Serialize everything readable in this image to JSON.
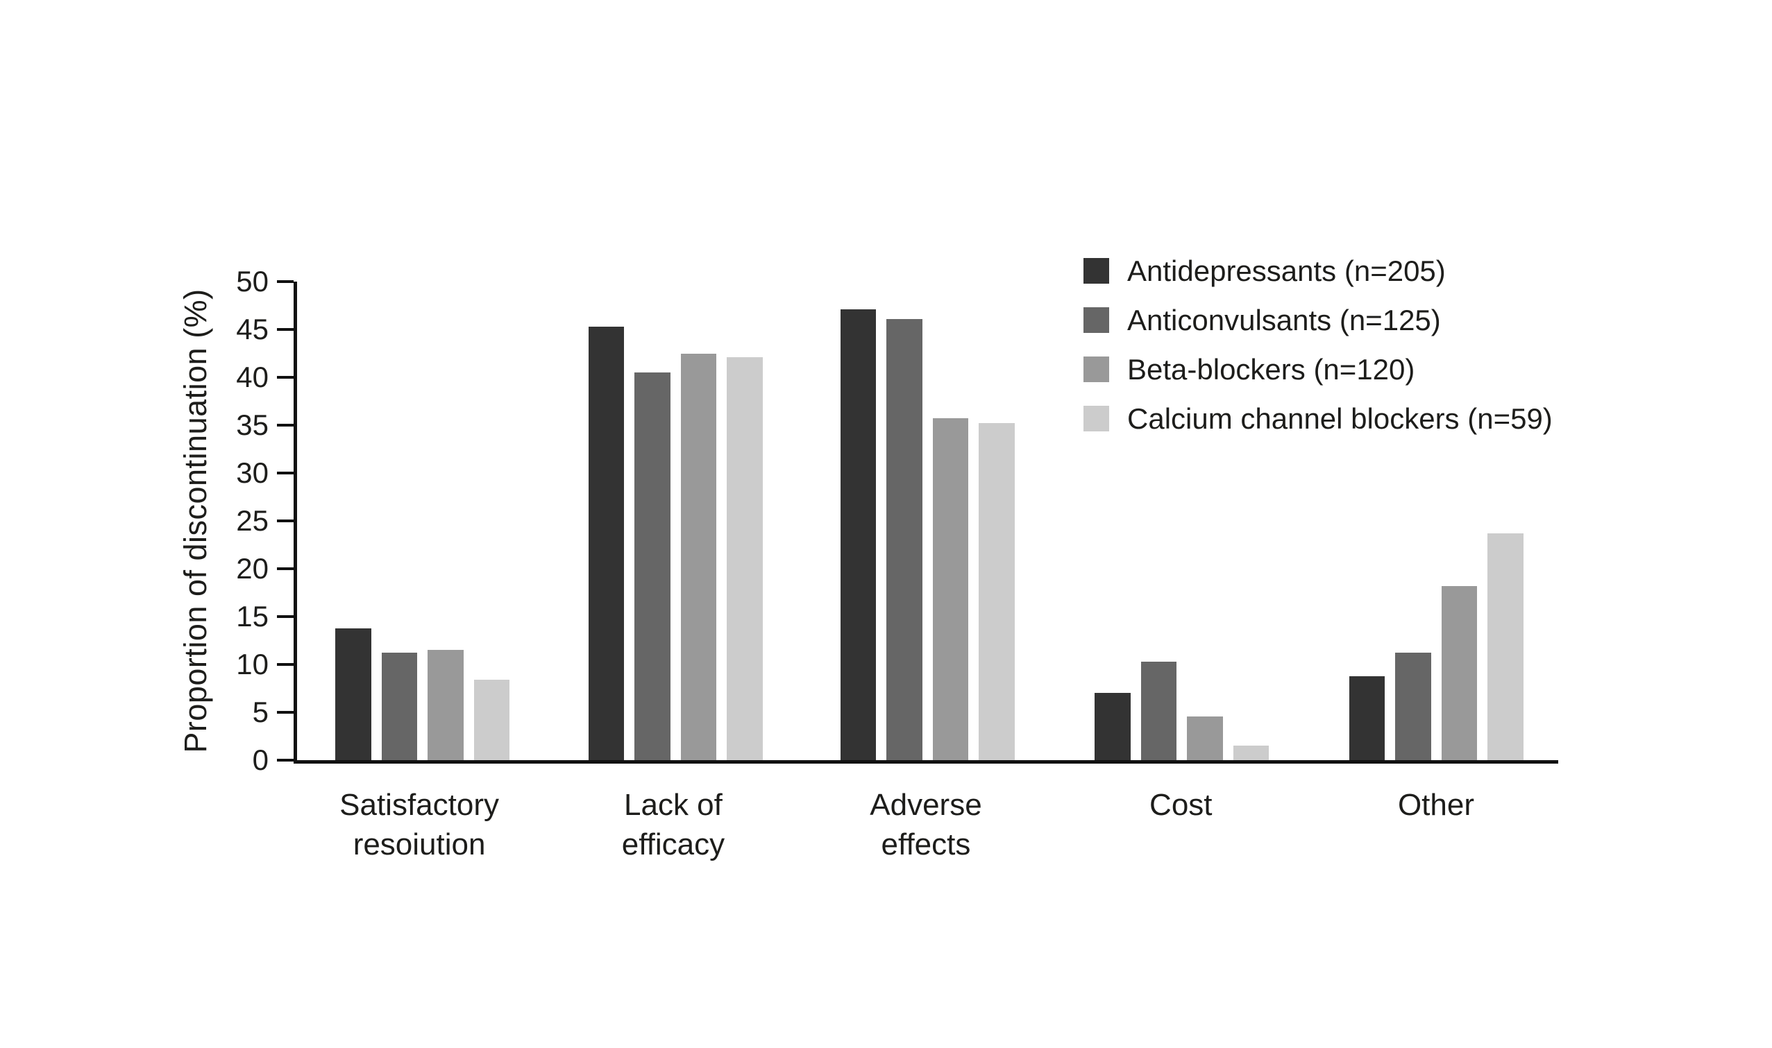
{
  "figure": {
    "background": "#ffffff",
    "axis_color": "#111111",
    "text_color": "#1d1d1b"
  },
  "chart_data": {
    "type": "bar",
    "title": "",
    "xlabel": "",
    "ylabel": "Proportion of discontinuation (%)",
    "ylim": [
      0,
      50
    ],
    "yticks": [
      0,
      5,
      10,
      15,
      20,
      25,
      30,
      35,
      40,
      45,
      50
    ],
    "grid": false,
    "legend_position": "upper right",
    "categories": [
      "Satisfactory\nresoiution",
      "Lack of\nefficacy",
      "Adverse\neffects",
      "Cost",
      "Other"
    ],
    "series": [
      {
        "name": "Antidepressants (n=205)",
        "color": "#333333",
        "values": [
          13.8,
          45.3,
          47.1,
          7.0,
          8.8
        ]
      },
      {
        "name": "Anticonvulsants (n=125)",
        "color": "#666666",
        "values": [
          11.2,
          40.5,
          46.1,
          10.3,
          11.2
        ]
      },
      {
        "name": "Beta-blockers (n=120)",
        "color": "#999999",
        "values": [
          11.5,
          42.5,
          35.7,
          4.6,
          18.2
        ]
      },
      {
        "name": "Calcium channel blockers (n=59)",
        "color": "#cccccc",
        "values": [
          8.4,
          42.1,
          35.2,
          1.5,
          23.7
        ]
      }
    ]
  }
}
